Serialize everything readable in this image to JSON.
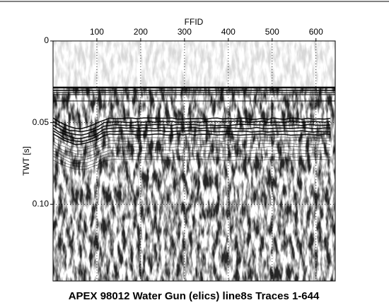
{
  "chart_data": {
    "type": "seismic",
    "title": "APEX 98012 Water Gun (elics) line8s Traces 1-644",
    "xlabel": "FFID",
    "ylabel": "TWT [s]",
    "xlim": [
      0,
      644
    ],
    "xticks": [
      100,
      200,
      300,
      400,
      500,
      600
    ],
    "ylim": [
      0,
      0.147
    ],
    "yticks": [
      0,
      0.05,
      {
        "value": 0.1,
        "label": "0.10"
      }
    ],
    "grid": true
  }
}
